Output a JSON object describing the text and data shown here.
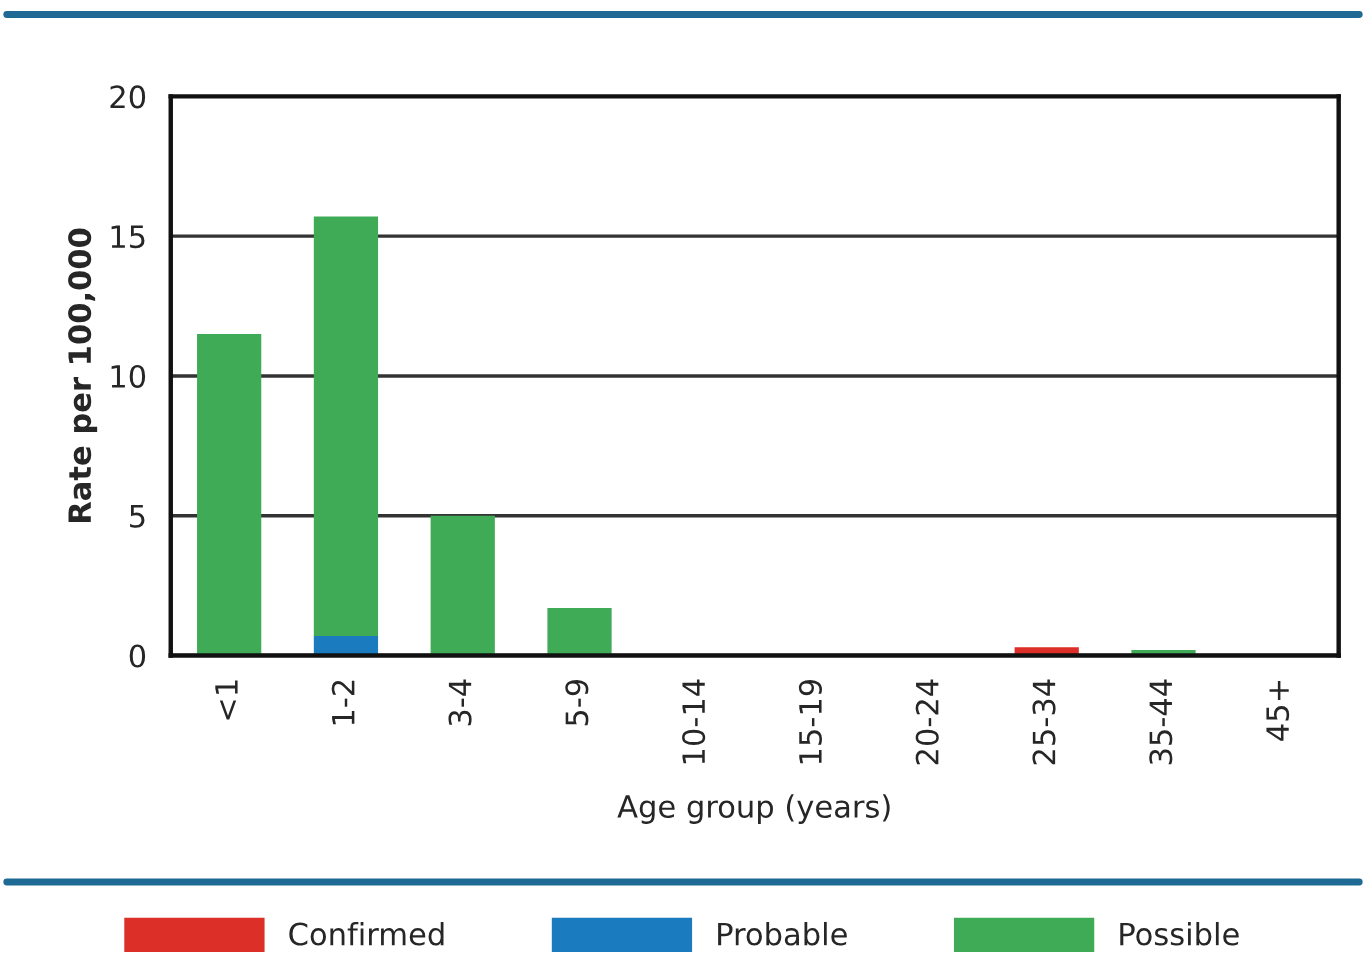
{
  "chart_data": {
    "type": "bar",
    "stacked": true,
    "xlabel": "Age group (years)",
    "ylabel": "Rate per 100,000",
    "categories": [
      "<1",
      "1-2",
      "3-4",
      "5-9",
      "10-14",
      "15-19",
      "20-24",
      "25-34",
      "35-44",
      "45+"
    ],
    "series": [
      {
        "name": "Confirmed",
        "color": "#dc2f27",
        "values": [
          0,
          0,
          0,
          0,
          0,
          0,
          0,
          0.3,
          0,
          0
        ]
      },
      {
        "name": "Probable",
        "color": "#1b7bbf",
        "values": [
          0,
          0.7,
          0,
          0,
          0,
          0,
          0,
          0,
          0,
          0
        ]
      },
      {
        "name": "Possible",
        "color": "#40ab57",
        "values": [
          11.5,
          15.0,
          5.0,
          1.7,
          0,
          0,
          0,
          0,
          0.2,
          0
        ]
      }
    ],
    "ylim": [
      0,
      20
    ],
    "yticks": [
      0,
      5,
      10,
      15,
      20
    ],
    "grid": "y",
    "legend": "bottom"
  }
}
